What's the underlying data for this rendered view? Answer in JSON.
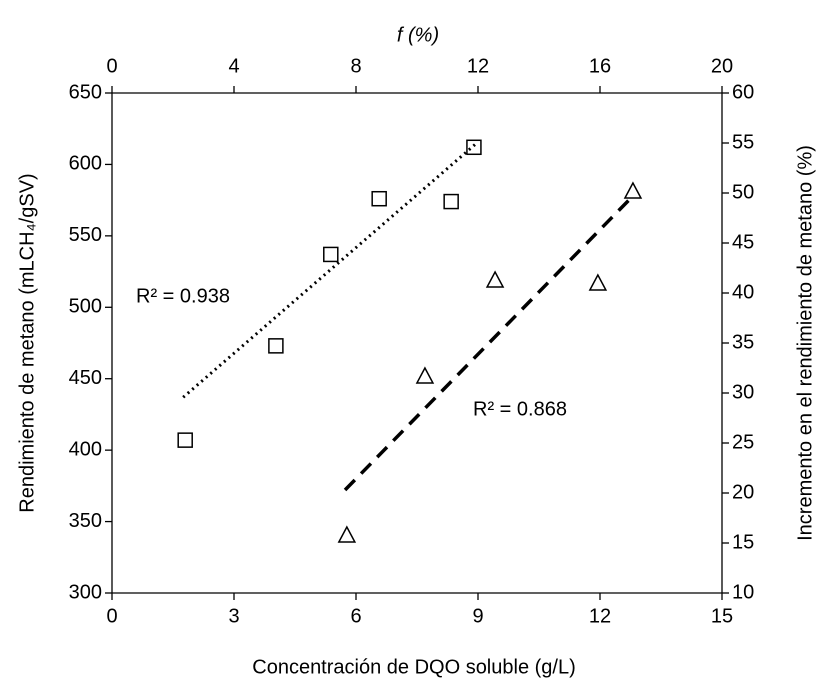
{
  "chart_data": {
    "type": "scatter",
    "x_label": "Concentración de DQO soluble (g/L)",
    "x2_label": "f (%)",
    "y_label": "Rendimiento de metano (mLCH₄/gSV)",
    "y2_label": "Incremento en el rendimiento de metano (%)",
    "xlim": [
      0,
      15
    ],
    "xticks": [
      0,
      3,
      6,
      9,
      12,
      15
    ],
    "x2lim": [
      0,
      20
    ],
    "x2ticks": [
      0,
      4,
      8,
      12,
      16,
      20
    ],
    "ylim": [
      300,
      650
    ],
    "yticks": [
      300,
      350,
      400,
      450,
      500,
      550,
      600,
      650
    ],
    "y2lim": [
      10,
      60
    ],
    "y2ticks": [
      10,
      15,
      20,
      25,
      30,
      35,
      40,
      45,
      50,
      55,
      60
    ],
    "series": [
      {
        "marker": "square",
        "color": "#000000",
        "x": [
          1.8,
          4.03,
          5.38,
          6.57,
          8.34,
          8.9
        ],
        "y": [
          407,
          473,
          537,
          576,
          574,
          612
        ]
      },
      {
        "marker": "triangle",
        "color": "#000000",
        "xaxis": "x2",
        "axis": "y2",
        "x": [
          7.7,
          10.26,
          12.56,
          15.93,
          17.08
        ],
        "y": [
          15.8,
          31.7,
          41.3,
          41.0,
          50.2
        ]
      }
    ],
    "trendlines": [
      {
        "style": "dotted",
        "color": "#000000",
        "x": [
          1.75,
          8.93
        ],
        "y": [
          437,
          614
        ]
      },
      {
        "style": "dashed",
        "color": "#000000",
        "xaxis": "x2",
        "axis": "y2",
        "x": [
          7.64,
          17.08
        ],
        "y": [
          20.3,
          49.7
        ]
      }
    ],
    "annotations": [
      "R² = 0.938",
      "R² = 0.868"
    ]
  }
}
